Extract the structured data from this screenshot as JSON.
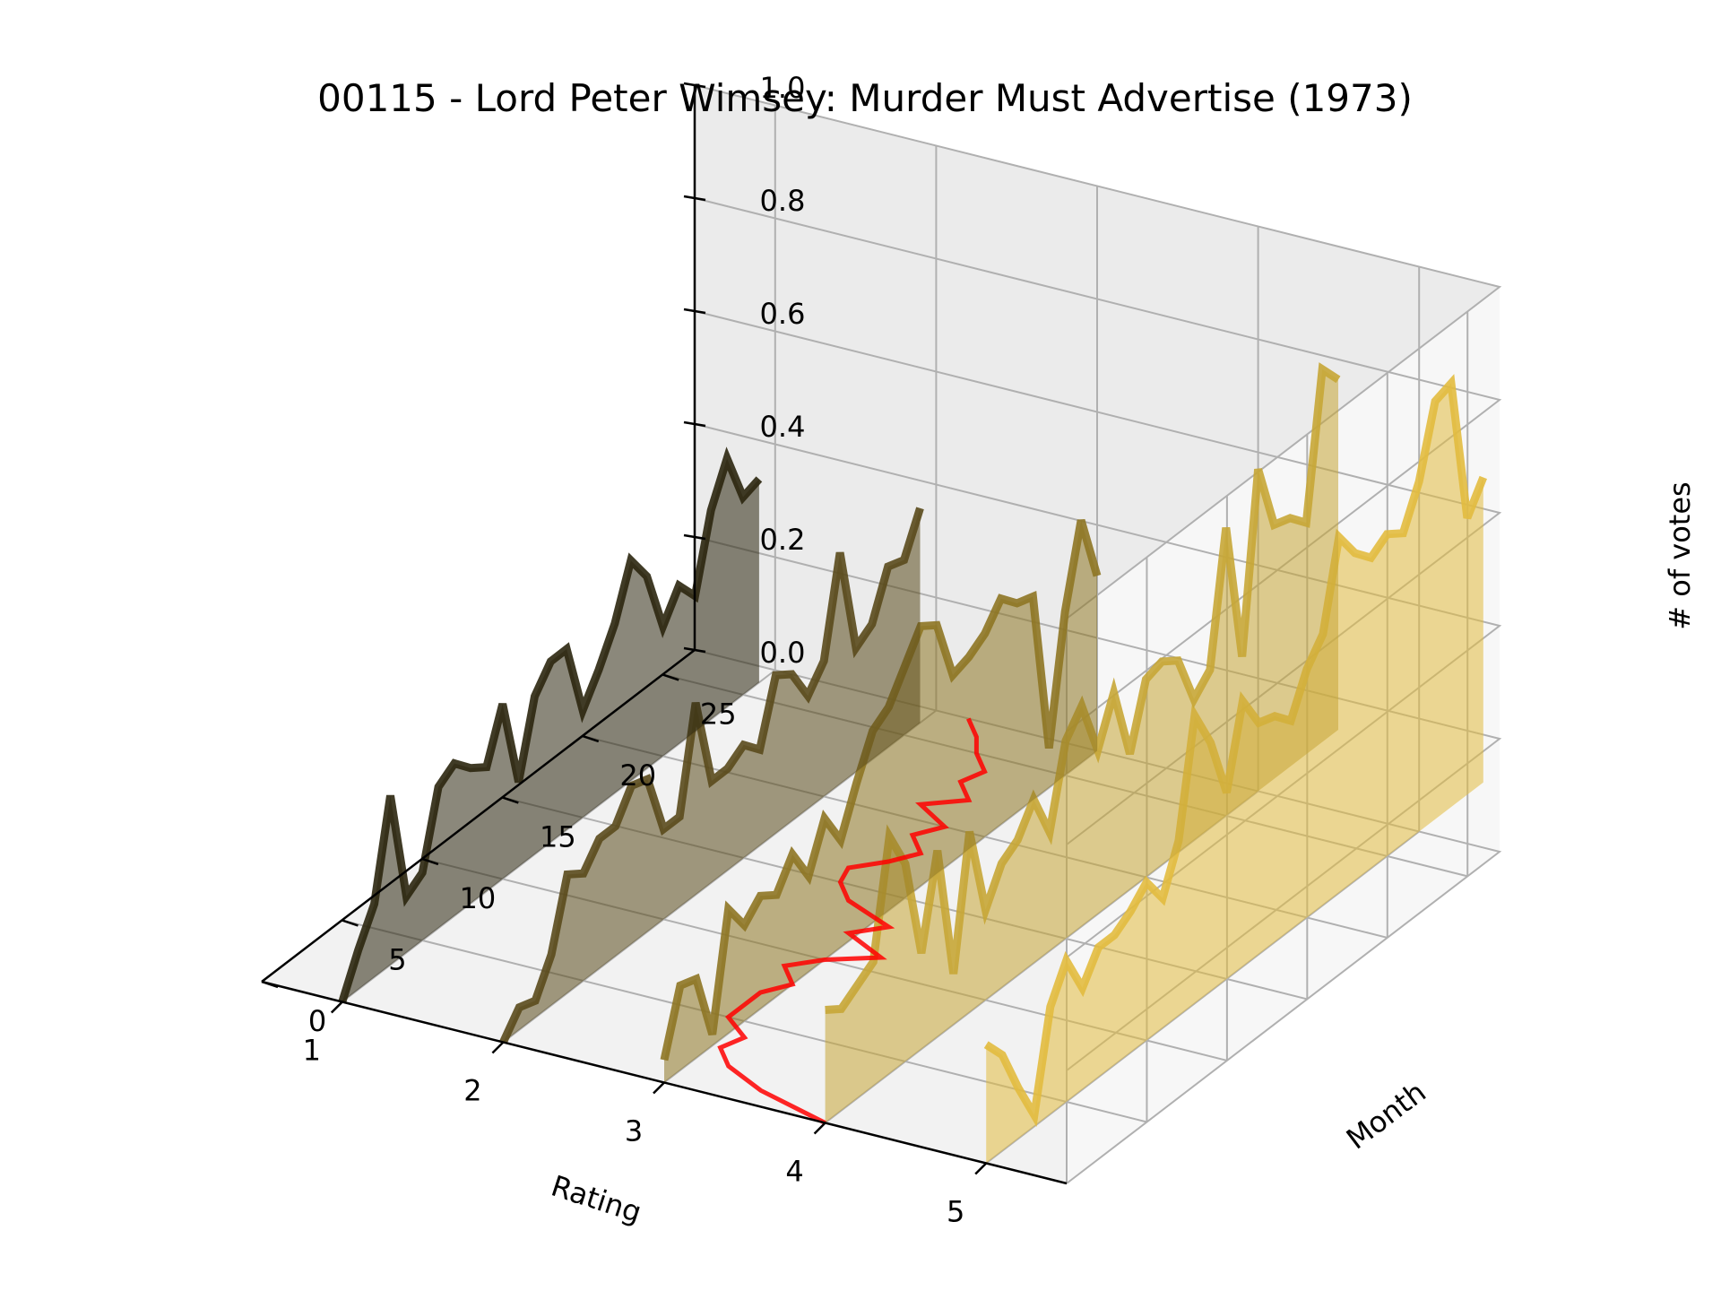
{
  "chart_data": {
    "type": "line",
    "projection": "3d-waterfall",
    "title": "00115 - Lord Peter Wimsey: Murder Must Advertise (1973)",
    "xlabel": "Rating",
    "ylabel": "Month",
    "zlabel": "# of votes",
    "x_ticks": [
      "5",
      "4",
      "3",
      "2",
      "1"
    ],
    "y_ticks": [
      "0",
      "5",
      "10",
      "15",
      "20",
      "25"
    ],
    "z_ticks": [
      "0.0",
      "0.2",
      "0.4",
      "0.6",
      "0.8",
      "1.0"
    ],
    "xlim": [
      0.5,
      5.5
    ],
    "ylim": [
      0,
      27
    ],
    "zlim": [
      0,
      1
    ],
    "grid": true,
    "mean_line_color": "#ff0000",
    "series": [
      {
        "rating": 5,
        "color": "#e2bb3f",
        "values": [
          0.21,
          0.17,
          0.09,
          0.02,
          0.19,
          0.25,
          0.18,
          0.23,
          0.23,
          0.25,
          0.28,
          0.23,
          0.31,
          0.51,
          0.44,
          0.33,
          0.47,
          0.41,
          0.4,
          0.37,
          0.44,
          0.48,
          0.63,
          0.58,
          0.55,
          0.57,
          0.55,
          0.62,
          0.74,
          0.75,
          0.49,
          0.54
        ]
      },
      {
        "rating": 4,
        "color": "#c7a636",
        "values": [
          0.2,
          0.18,
          0.2,
          0.22,
          0.42,
          0.35,
          0.17,
          0.33,
          0.09,
          0.32,
          0.16,
          0.22,
          0.24,
          0.29,
          0.21,
          0.35,
          0.39,
          0.29,
          0.37,
          0.24,
          0.35,
          0.36,
          0.34,
          0.25,
          0.28,
          0.51,
          0.26,
          0.57,
          0.45,
          0.44,
          0.41,
          0.66,
          0.62
        ]
      },
      {
        "rating": 3,
        "color": "#8e7624",
        "values": [
          0.04,
          0.15,
          0.14,
          0.02,
          0.22,
          0.17,
          0.2,
          0.18,
          0.23,
          0.17,
          0.25,
          0.19,
          0.27,
          0.34,
          0.36,
          0.41,
          0.46,
          0.44,
          0.33,
          0.34,
          0.36,
          0.4,
          0.37,
          0.36,
          0.07,
          0.29,
          0.43,
          0.31
        ]
      },
      {
        "rating": 2,
        "color": "#5a4a1c",
        "values": [
          0.0,
          0.04,
          0.03,
          0.09,
          0.21,
          0.19,
          0.23,
          0.23,
          0.28,
          0.27,
          0.16,
          0.16,
          0.34,
          0.18,
          0.18,
          0.2,
          0.17,
          0.28,
          0.26,
          0.2,
          0.24,
          0.41,
          0.22,
          0.24,
          0.32,
          0.31,
          0.38
        ]
      },
      {
        "rating": 1,
        "color": "#2b260e",
        "values": [
          0.0,
          0.07,
          0.13,
          0.3,
          0.1,
          0.12,
          0.25,
          0.27,
          0.24,
          0.22,
          0.31,
          0.15,
          0.28,
          0.32,
          0.32,
          0.19,
          0.24,
          0.3,
          0.39,
          0.34,
          0.23,
          0.28,
          0.24,
          0.37,
          0.44,
          0.35,
          0.36
        ]
      }
    ],
    "mean_rating": [
      4.0,
      3.5,
      3.2,
      3.05,
      3.1,
      2.9,
      2.9,
      2.9,
      3.0,
      2.85,
      3.0,
      3.25,
      2.95,
      3.1,
      2.75,
      2.6,
      2.55,
      2.7,
      2.8,
      2.65,
      2.75,
      2.5,
      2.7,
      2.55,
      2.6,
      2.45,
      2.35,
      2.2
    ]
  }
}
